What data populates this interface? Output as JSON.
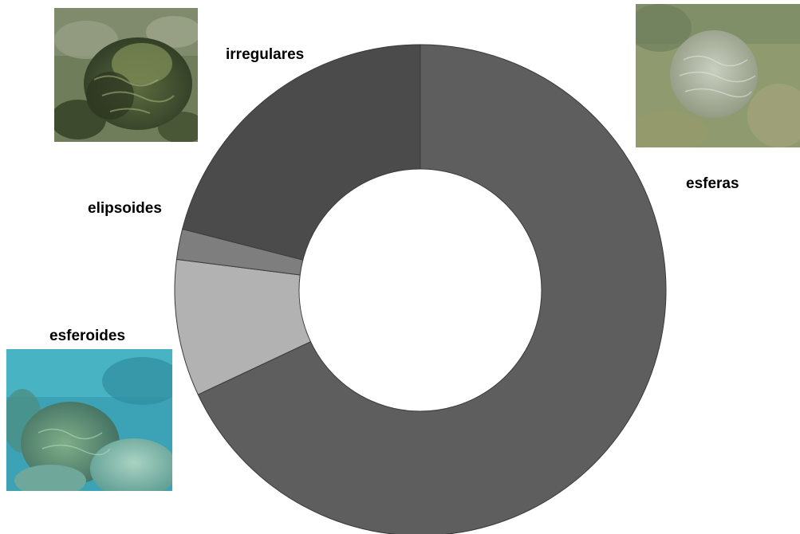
{
  "chart_data": {
    "type": "pie",
    "donut": true,
    "slices": [
      {
        "label": "esferas",
        "value": 68,
        "color": "#5e5e5e"
      },
      {
        "label": "esferoides",
        "value": 9,
        "color": "#b2b2b2"
      },
      {
        "label": "elipsoides",
        "value": 2,
        "color": "#7e7e7e"
      },
      {
        "label": "irregulares",
        "value": 21,
        "color": "#4b4b4b"
      }
    ]
  },
  "images": {
    "irregulares": "coral-photo",
    "esferas": "coral-photo",
    "esferoides": "coral-photo"
  }
}
